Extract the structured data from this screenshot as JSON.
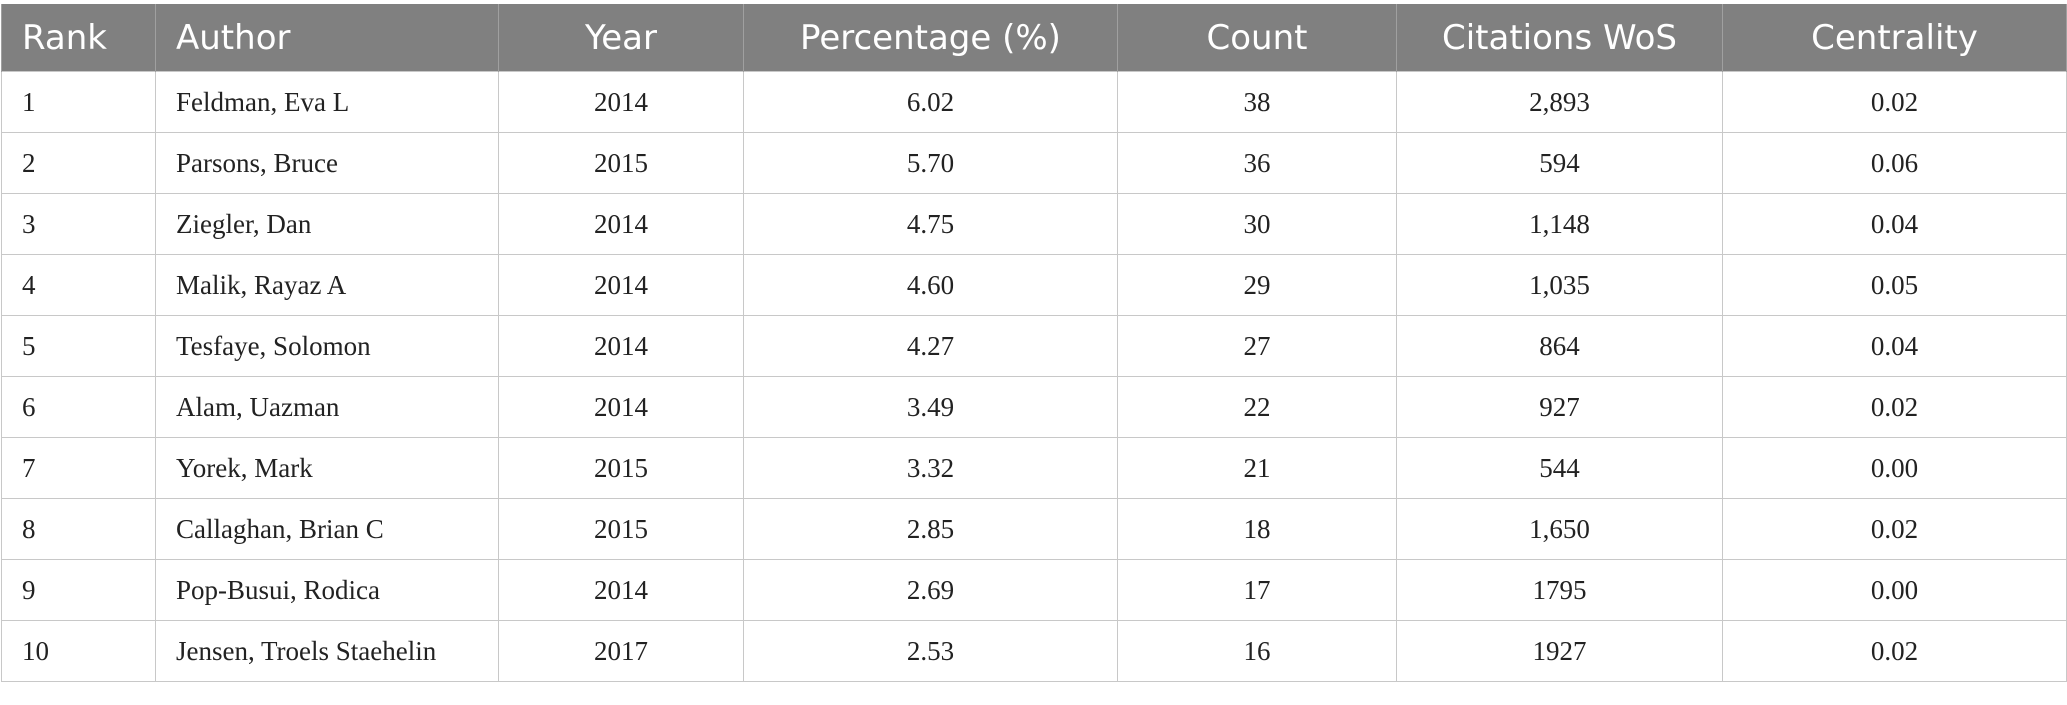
{
  "table": {
    "headers": [
      "Rank",
      "Author",
      "Year",
      "Percentage (%)",
      "Count",
      "Citations WoS",
      "Centrality"
    ],
    "rows": [
      [
        "1",
        "Feldman, Eva L",
        "2014",
        "6.02",
        "38",
        "2,893",
        "0.02"
      ],
      [
        "2",
        "Parsons, Bruce",
        "2015",
        "5.70",
        "36",
        "594",
        "0.06"
      ],
      [
        "3",
        "Ziegler, Dan",
        "2014",
        "4.75",
        "30",
        "1,148",
        "0.04"
      ],
      [
        "4",
        "Malik, Rayaz A",
        "2014",
        "4.60",
        "29",
        "1,035",
        "0.05"
      ],
      [
        "5",
        "Tesfaye, Solomon",
        "2014",
        "4.27",
        "27",
        "864",
        "0.04"
      ],
      [
        "6",
        "Alam, Uazman",
        "2014",
        "3.49",
        "22",
        "927",
        "0.02"
      ],
      [
        "7",
        "Yorek, Mark",
        "2015",
        "3.32",
        "21",
        "544",
        "0.00"
      ],
      [
        "8",
        "Callaghan, Brian C",
        "2015",
        "2.85",
        "18",
        "1,650",
        "0.02"
      ],
      [
        "9",
        "Pop-Busui, Rodica",
        "2014",
        "2.69",
        "17",
        "1795",
        "0.00"
      ],
      [
        "10",
        "Jensen, Troels Staehelin",
        "2017",
        "2.53",
        "16",
        "1927",
        "0.02"
      ]
    ]
  }
}
